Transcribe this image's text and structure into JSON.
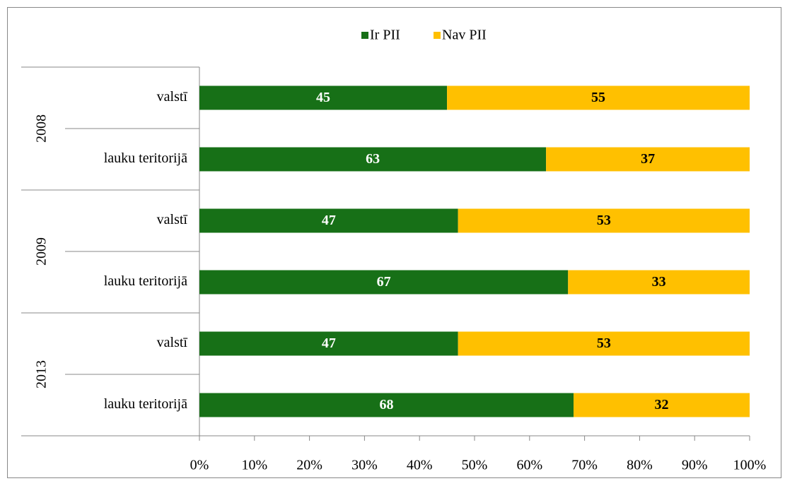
{
  "chart_data": {
    "type": "stacked-bar-horizontal",
    "groups": [
      "2008",
      "2009",
      "2013"
    ],
    "categories": [
      "valstī",
      "lauku teritorijā",
      "valstī",
      "lauku teritorijā",
      "valstī",
      "lauku teritorijā"
    ],
    "series": [
      {
        "name": "Ir PII",
        "color": "#177017",
        "values": [
          45,
          63,
          47,
          67,
          47,
          68
        ]
      },
      {
        "name": "Nav PII",
        "color": "#ffc000",
        "values": [
          55,
          37,
          53,
          33,
          53,
          32
        ]
      }
    ],
    "xlim": [
      0,
      100
    ],
    "xticks": [
      {
        "value": 0,
        "label": "0%"
      },
      {
        "value": 10,
        "label": "10%"
      },
      {
        "value": 20,
        "label": "20%"
      },
      {
        "value": 30,
        "label": "30%"
      },
      {
        "value": 40,
        "label": "40%"
      },
      {
        "value": 50,
        "label": "50%"
      },
      {
        "value": 60,
        "label": "60%"
      },
      {
        "value": 70,
        "label": "70%"
      },
      {
        "value": 80,
        "label": "80%"
      },
      {
        "value": 90,
        "label": "90%"
      },
      {
        "value": 100,
        "label": "100%"
      }
    ],
    "legend": "top"
  }
}
